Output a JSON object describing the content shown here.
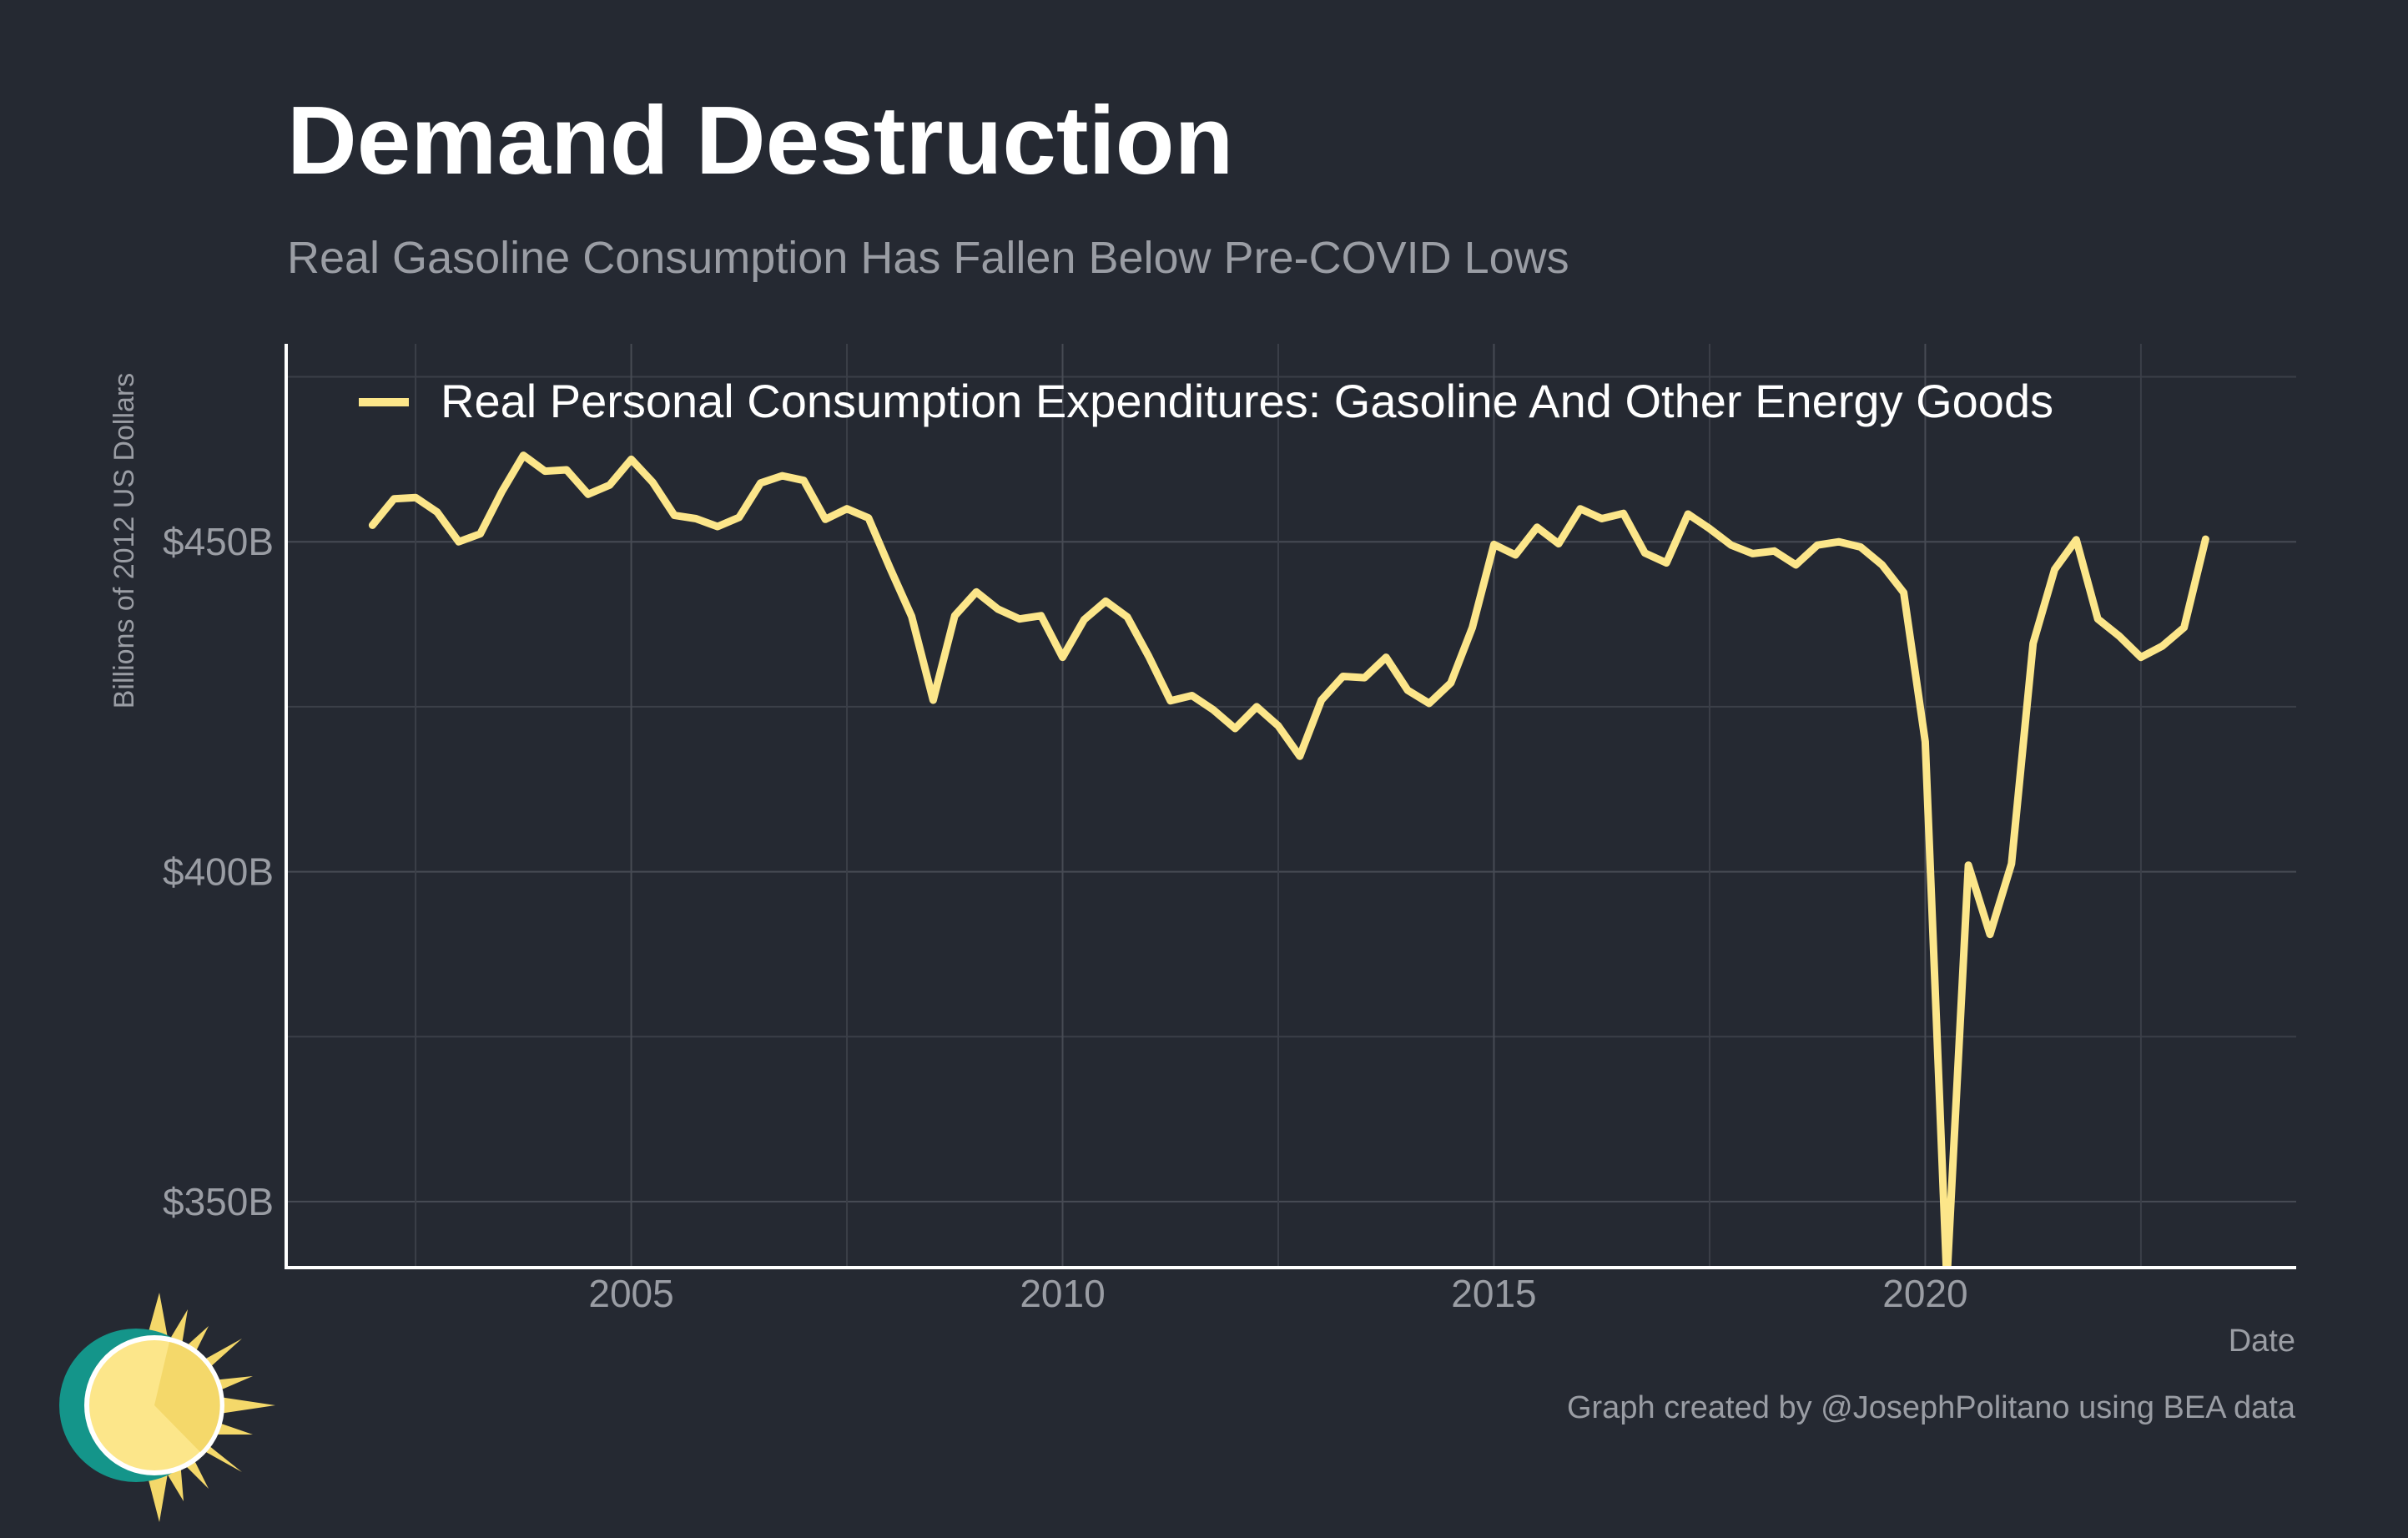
{
  "chart_data": {
    "type": "line",
    "title": "Demand Destruction",
    "subtitle": "Real Gasoline Consumption Has Fallen Below Pre-COVID Lows",
    "xlabel": "Date",
    "ylabel": "Billions of 2012 US Dollars",
    "caption": "Graph created by @JosephPolitano using BEA data",
    "legend_position": "top-left (inside plot)",
    "grid": true,
    "xlim": [
      2001.0,
      2024.3
    ],
    "ylim": [
      340,
      480
    ],
    "x_ticks": [
      {
        "value": 2005,
        "label": "2005"
      },
      {
        "value": 2010,
        "label": "2010"
      },
      {
        "value": 2015,
        "label": "2015"
      },
      {
        "value": 2020,
        "label": "2020"
      }
    ],
    "y_ticks": [
      {
        "value": 350,
        "label": "$350B"
      },
      {
        "value": 400,
        "label": "$400B"
      },
      {
        "value": 450,
        "label": "$450B"
      }
    ],
    "series": [
      {
        "name": "Real Personal Consumption Expenditures: Gasoline And Other Energy Goods",
        "color": "#fce68a",
        "x": [
          2002.0,
          2002.25,
          2002.5,
          2002.75,
          2003.0,
          2003.25,
          2003.5,
          2003.75,
          2004.0,
          2004.25,
          2004.5,
          2004.75,
          2005.0,
          2005.25,
          2005.5,
          2005.75,
          2006.0,
          2006.25,
          2006.5,
          2006.75,
          2007.0,
          2007.25,
          2007.5,
          2007.75,
          2008.0,
          2008.25,
          2008.5,
          2008.75,
          2009.0,
          2009.25,
          2009.5,
          2009.75,
          2010.0,
          2010.25,
          2010.5,
          2010.75,
          2011.0,
          2011.25,
          2011.5,
          2011.75,
          2012.0,
          2012.25,
          2012.5,
          2012.75,
          2013.0,
          2013.25,
          2013.5,
          2013.75,
          2014.0,
          2014.25,
          2014.5,
          2014.75,
          2015.0,
          2015.25,
          2015.5,
          2015.75,
          2016.0,
          2016.25,
          2016.5,
          2016.75,
          2017.0,
          2017.25,
          2017.5,
          2017.75,
          2018.0,
          2018.25,
          2018.5,
          2018.75,
          2019.0,
          2019.25,
          2019.5,
          2019.75,
          2020.0,
          2020.25,
          2020.5,
          2020.75,
          2021.0,
          2021.25,
          2021.5,
          2021.75,
          2022.0,
          2022.25,
          2022.5,
          2022.75,
          2023.0,
          2023.25
        ],
        "y": [
          452.5,
          456.5,
          456.7,
          454.5,
          450.0,
          451.2,
          457.6,
          463.1,
          460.7,
          460.9,
          457.2,
          458.6,
          462.5,
          459.0,
          454.0,
          453.5,
          452.3,
          453.7,
          458.9,
          460.0,
          459.3,
          453.4,
          455.0,
          453.6,
          446.0,
          438.7,
          426.0,
          438.8,
          442.4,
          439.8,
          438.3,
          438.8,
          432.5,
          438.2,
          441.0,
          438.6,
          432.6,
          425.9,
          426.7,
          424.5,
          421.7,
          425.0,
          422.1,
          417.5,
          426.0,
          429.6,
          429.4,
          432.5,
          427.5,
          425.5,
          428.6,
          437.0,
          449.6,
          448.0,
          452.2,
          449.7,
          455.0,
          453.5,
          454.3,
          448.3,
          446.8,
          454.2,
          452.0,
          449.5,
          448.2,
          448.6,
          446.5,
          449.5,
          450.0,
          449.2,
          446.5,
          442.3,
          419.7,
          338.0,
          401.0,
          390.5,
          401.2,
          434.6,
          445.8,
          450.3,
          438.3,
          435.7,
          432.5,
          434.2,
          437.0,
          450.4
        ]
      }
    ]
  }
}
